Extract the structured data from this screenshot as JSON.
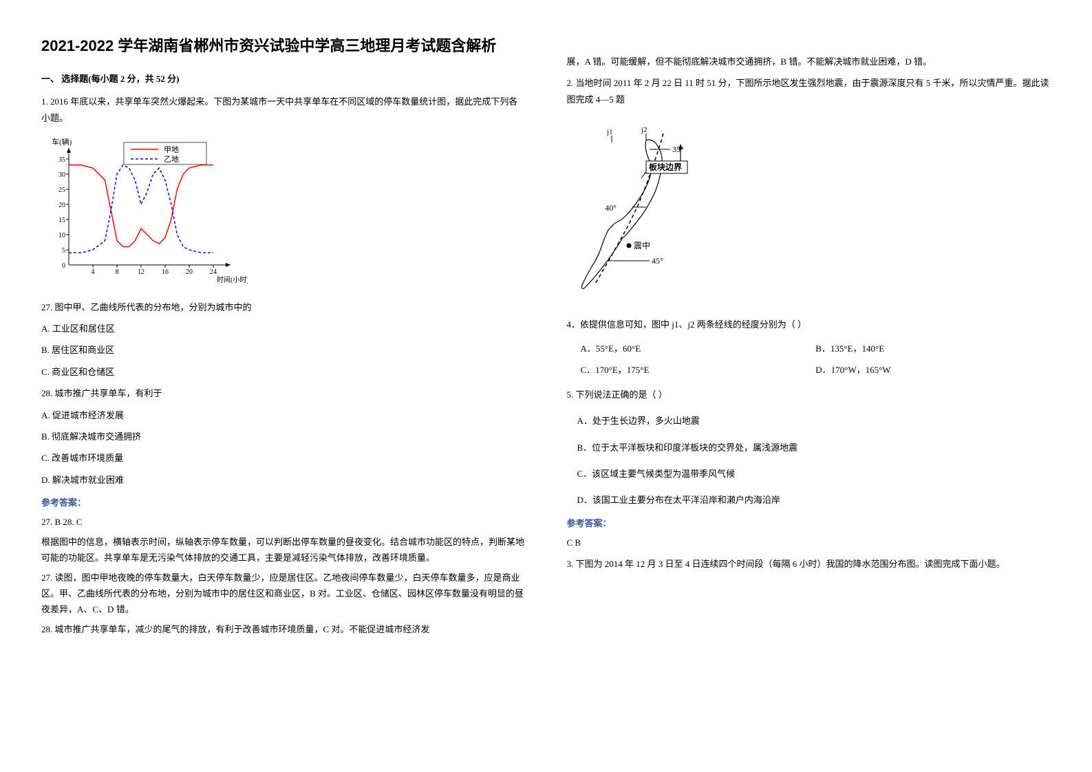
{
  "title": "2021-2022 学年湖南省郴州市资兴试验中学高三地理月考试题含解析",
  "section_header": "一、 选择题(每小题 2 分，共 52 分)",
  "q1": {
    "intro": "1. 2016 年底以来，共享单车突然火爆起来。下图为某城市一天中共享单车在不同区域的停车数量统计图，据此完成下列各小题。",
    "chart": {
      "y_label": "车(辆)",
      "x_label": "时间(小时)",
      "legend_a": "甲地",
      "legend_b": "乙地",
      "x_ticks": [
        4,
        8,
        12,
        16,
        20,
        24
      ],
      "y_ticks": [
        0,
        5,
        10,
        15,
        20,
        25,
        30,
        35
      ],
      "series_a": {
        "color": "#ff0000",
        "points": [
          [
            0,
            33
          ],
          [
            2,
            33
          ],
          [
            4,
            32
          ],
          [
            6,
            28
          ],
          [
            7,
            18
          ],
          [
            8,
            8
          ],
          [
            9,
            6
          ],
          [
            10,
            6
          ],
          [
            11,
            8
          ],
          [
            12,
            12
          ],
          [
            13,
            10
          ],
          [
            14,
            8
          ],
          [
            15,
            7
          ],
          [
            16,
            9
          ],
          [
            17,
            15
          ],
          [
            18,
            25
          ],
          [
            19,
            30
          ],
          [
            20,
            32
          ],
          [
            22,
            33
          ],
          [
            24,
            33
          ]
        ]
      },
      "series_b": {
        "color": "#0000ff",
        "points": [
          [
            0,
            4
          ],
          [
            2,
            4
          ],
          [
            4,
            5
          ],
          [
            6,
            8
          ],
          [
            7,
            18
          ],
          [
            8,
            30
          ],
          [
            9,
            33
          ],
          [
            10,
            32
          ],
          [
            11,
            28
          ],
          [
            12,
            20
          ],
          [
            13,
            24
          ],
          [
            14,
            30
          ],
          [
            15,
            32
          ],
          [
            16,
            28
          ],
          [
            17,
            20
          ],
          [
            18,
            10
          ],
          [
            19,
            6
          ],
          [
            20,
            5
          ],
          [
            22,
            4
          ],
          [
            24,
            4
          ]
        ]
      }
    },
    "q27": "27.  图中甲、乙曲线所代表的分布地，分别为城市中的",
    "q27_opts": [
      "A.  工业区和居住区",
      "B.  居住区和商业区",
      "C.  商业区和仓储区"
    ],
    "q28": "28.  城市推广共享单车，有利于",
    "q28_opts": [
      "A.  促进城市经济发展",
      "B.  彻底解决城市交通拥挤",
      "C.  改善城市环境质量",
      "D.  解决城市就业困难"
    ],
    "answer_label": "参考答案：",
    "answer_line": "27. B      28. C",
    "explain1": "根据图中的信息，横轴表示时间，纵轴表示停车数量，可以判断出停车数量的昼夜变化。结合城市功能区的特点，判断某地可能的功能区。共享单车是无污染气体排放的交通工具，主要是减轻污染气体排放，改善环境质量。",
    "explain2": "27.  读图，图中甲地夜晚的停车数量大，白天停车数量少，应是居住区。乙地夜间停车数量少，白天停车数量多，应是商业区。甲、乙曲线所代表的分布地，分别为城市中的居住区和商业区，B 对。工业区、仓储区、园林区停车数量没有明显的昼夜差异，A、C、D 错。",
    "explain3": "28.  城市推广共享单车，减少的尾气的排放，有利于改善城市环境质量，C 对。不能促进城市经济发"
  },
  "col2": {
    "cont": "展，A 错。可能缓解，但不能彻底解决城市交通拥挤，B 错。不能解决城市就业困难，D 错。",
    "q2_intro": "2. 当地时间 2011 年 2 月 22 日 11 时 51 分，下图所示地区发生强烈地震，由于震源深度只有 5 千米，所以灾情严重。据此读图完成 4—5 题",
    "map": {
      "lat_35": "35°",
      "lat_40": "40°",
      "lat_45": "45°",
      "boundary_label": "板块边界",
      "epicenter_label": "震中",
      "line_j1": "j1",
      "line_j2": "j2"
    },
    "q4": "4．依提供信息可知，图中 j1、j2 两条经线的经度分别为（          ）",
    "q4_opts": {
      "a": "A．55°E，60°E",
      "b": "B．135°E，140°E",
      "c": "C．170°E，175°E",
      "d": "D．170°W，165°W"
    },
    "q5": "5. 下列说法正确的是（          ）",
    "q5_opts": [
      "A．处于生长边界，多火山地震",
      "B．位于太平洋板块和印度洋板块的交界处，属浅源地震",
      "C．该区域主要气候类型为温带季风气候",
      "D．该国工业主要分布在太平洋沿岸和濑户内海沿岸"
    ],
    "answer_label": "参考答案：",
    "answer_line": "C  B",
    "q3_intro": "3. 下图为 2014 年 12 月 3 日至 4 日连续四个时间段（每隔 6 小时）我国的降水范围分布图。读图完成下面小题。"
  }
}
